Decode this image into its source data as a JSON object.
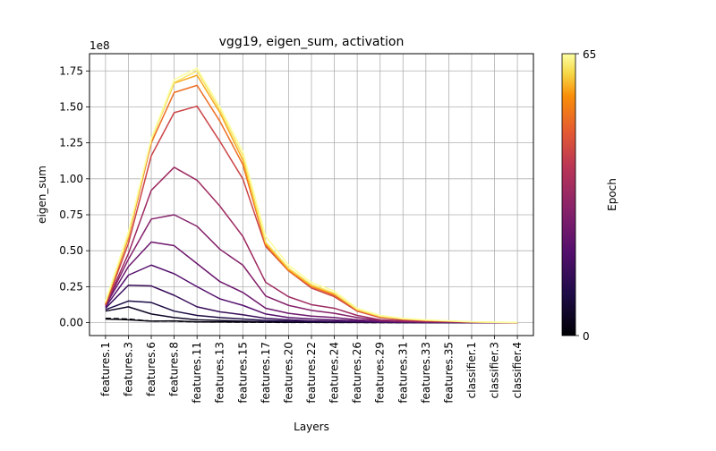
{
  "chart_data": {
    "type": "line",
    "title": "vgg19, eigen_sum, activation",
    "xlabel": "Layers",
    "ylabel": "eigen_sum",
    "y_scale_label": "1e8",
    "ylim": [
      -0.09,
      1.87
    ],
    "y_ticks": [
      "0.00",
      "0.25",
      "0.50",
      "0.75",
      "1.00",
      "1.25",
      "1.50",
      "1.75"
    ],
    "grid": true,
    "categories": [
      "features.1",
      "features.3",
      "features.6",
      "features.8",
      "features.11",
      "features.13",
      "features.15",
      "features.17",
      "features.20",
      "features.22",
      "features.24",
      "features.26",
      "features.29",
      "features.31",
      "features.33",
      "features.35",
      "classifier.1",
      "classifier.3",
      "classifier.4"
    ],
    "colormap": "inferno",
    "colorbar": {
      "label": "Epoch",
      "min": 0,
      "max": 65,
      "min_label": "0",
      "max_label": "65"
    },
    "series": [
      {
        "epoch": 0,
        "dashed": true,
        "values": [
          0.03,
          0.025,
          0.01,
          0.01,
          0.005,
          0.004,
          0.003,
          0.002,
          0.001,
          0.001,
          0.001,
          0.001,
          0.0,
          0.0,
          0.0,
          0.0,
          0.0,
          0.0,
          0.0
        ]
      },
      {
        "epoch": 1,
        "values": [
          0.025,
          0.02,
          0.01,
          0.012,
          0.006,
          0.005,
          0.004,
          0.003,
          0.002,
          0.002,
          0.001,
          0.001,
          0.001,
          0.0,
          0.0,
          0.0,
          0.0,
          0.0,
          0.0
        ]
      },
      {
        "epoch": 4,
        "values": [
          0.08,
          0.11,
          0.06,
          0.035,
          0.02,
          0.015,
          0.01,
          0.006,
          0.004,
          0.003,
          0.002,
          0.002,
          0.001,
          0.001,
          0.0,
          0.0,
          0.0,
          0.0,
          0.0
        ]
      },
      {
        "epoch": 8,
        "values": [
          0.09,
          0.15,
          0.14,
          0.08,
          0.05,
          0.035,
          0.025,
          0.015,
          0.01,
          0.007,
          0.005,
          0.004,
          0.002,
          0.001,
          0.001,
          0.0,
          0.0,
          0.0,
          0.0
        ]
      },
      {
        "epoch": 12,
        "values": [
          0.1,
          0.26,
          0.255,
          0.19,
          0.11,
          0.075,
          0.055,
          0.03,
          0.02,
          0.012,
          0.009,
          0.006,
          0.003,
          0.002,
          0.001,
          0.001,
          0.0,
          0.0,
          0.0
        ]
      },
      {
        "epoch": 16,
        "values": [
          0.11,
          0.33,
          0.4,
          0.34,
          0.25,
          0.165,
          0.12,
          0.06,
          0.035,
          0.025,
          0.018,
          0.012,
          0.006,
          0.004,
          0.002,
          0.002,
          0.001,
          0.0,
          0.0
        ]
      },
      {
        "epoch": 20,
        "values": [
          0.12,
          0.39,
          0.56,
          0.535,
          0.41,
          0.285,
          0.21,
          0.1,
          0.065,
          0.045,
          0.035,
          0.02,
          0.01,
          0.006,
          0.004,
          0.003,
          0.001,
          0.001,
          0.0
        ]
      },
      {
        "epoch": 24,
        "values": [
          0.12,
          0.44,
          0.72,
          0.75,
          0.67,
          0.51,
          0.4,
          0.185,
          0.12,
          0.085,
          0.065,
          0.035,
          0.015,
          0.009,
          0.006,
          0.004,
          0.002,
          0.001,
          0.0
        ]
      },
      {
        "epoch": 28,
        "values": [
          0.12,
          0.48,
          0.92,
          1.08,
          0.99,
          0.81,
          0.6,
          0.28,
          0.18,
          0.125,
          0.1,
          0.05,
          0.02,
          0.013,
          0.008,
          0.005,
          0.002,
          0.001,
          0.0
        ]
      },
      {
        "epoch": 36,
        "values": [
          0.12,
          0.55,
          1.16,
          1.46,
          1.505,
          1.26,
          1.0,
          0.53,
          0.36,
          0.24,
          0.18,
          0.08,
          0.035,
          0.02,
          0.013,
          0.009,
          0.004,
          0.002,
          0.001
        ]
      },
      {
        "epoch": 44,
        "values": [
          0.13,
          0.59,
          1.25,
          1.6,
          1.65,
          1.4,
          1.1,
          0.54,
          0.36,
          0.25,
          0.19,
          0.085,
          0.04,
          0.024,
          0.015,
          0.01,
          0.004,
          0.002,
          0.001
        ]
      },
      {
        "epoch": 52,
        "values": [
          0.14,
          0.6,
          1.27,
          1.665,
          1.72,
          1.46,
          1.13,
          0.55,
          0.37,
          0.255,
          0.2,
          0.09,
          0.042,
          0.025,
          0.016,
          0.011,
          0.005,
          0.002,
          0.001
        ]
      },
      {
        "epoch": 60,
        "values": [
          0.14,
          0.61,
          1.27,
          1.67,
          1.75,
          1.48,
          1.16,
          0.56,
          0.38,
          0.265,
          0.205,
          0.09,
          0.044,
          0.026,
          0.017,
          0.011,
          0.005,
          0.002,
          0.001
        ]
      },
      {
        "epoch": 65,
        "values": [
          0.15,
          0.63,
          1.28,
          1.69,
          1.77,
          1.5,
          1.19,
          0.6,
          0.4,
          0.28,
          0.22,
          0.1,
          0.05,
          0.03,
          0.02,
          0.013,
          0.006,
          0.003,
          0.002
        ]
      }
    ]
  }
}
